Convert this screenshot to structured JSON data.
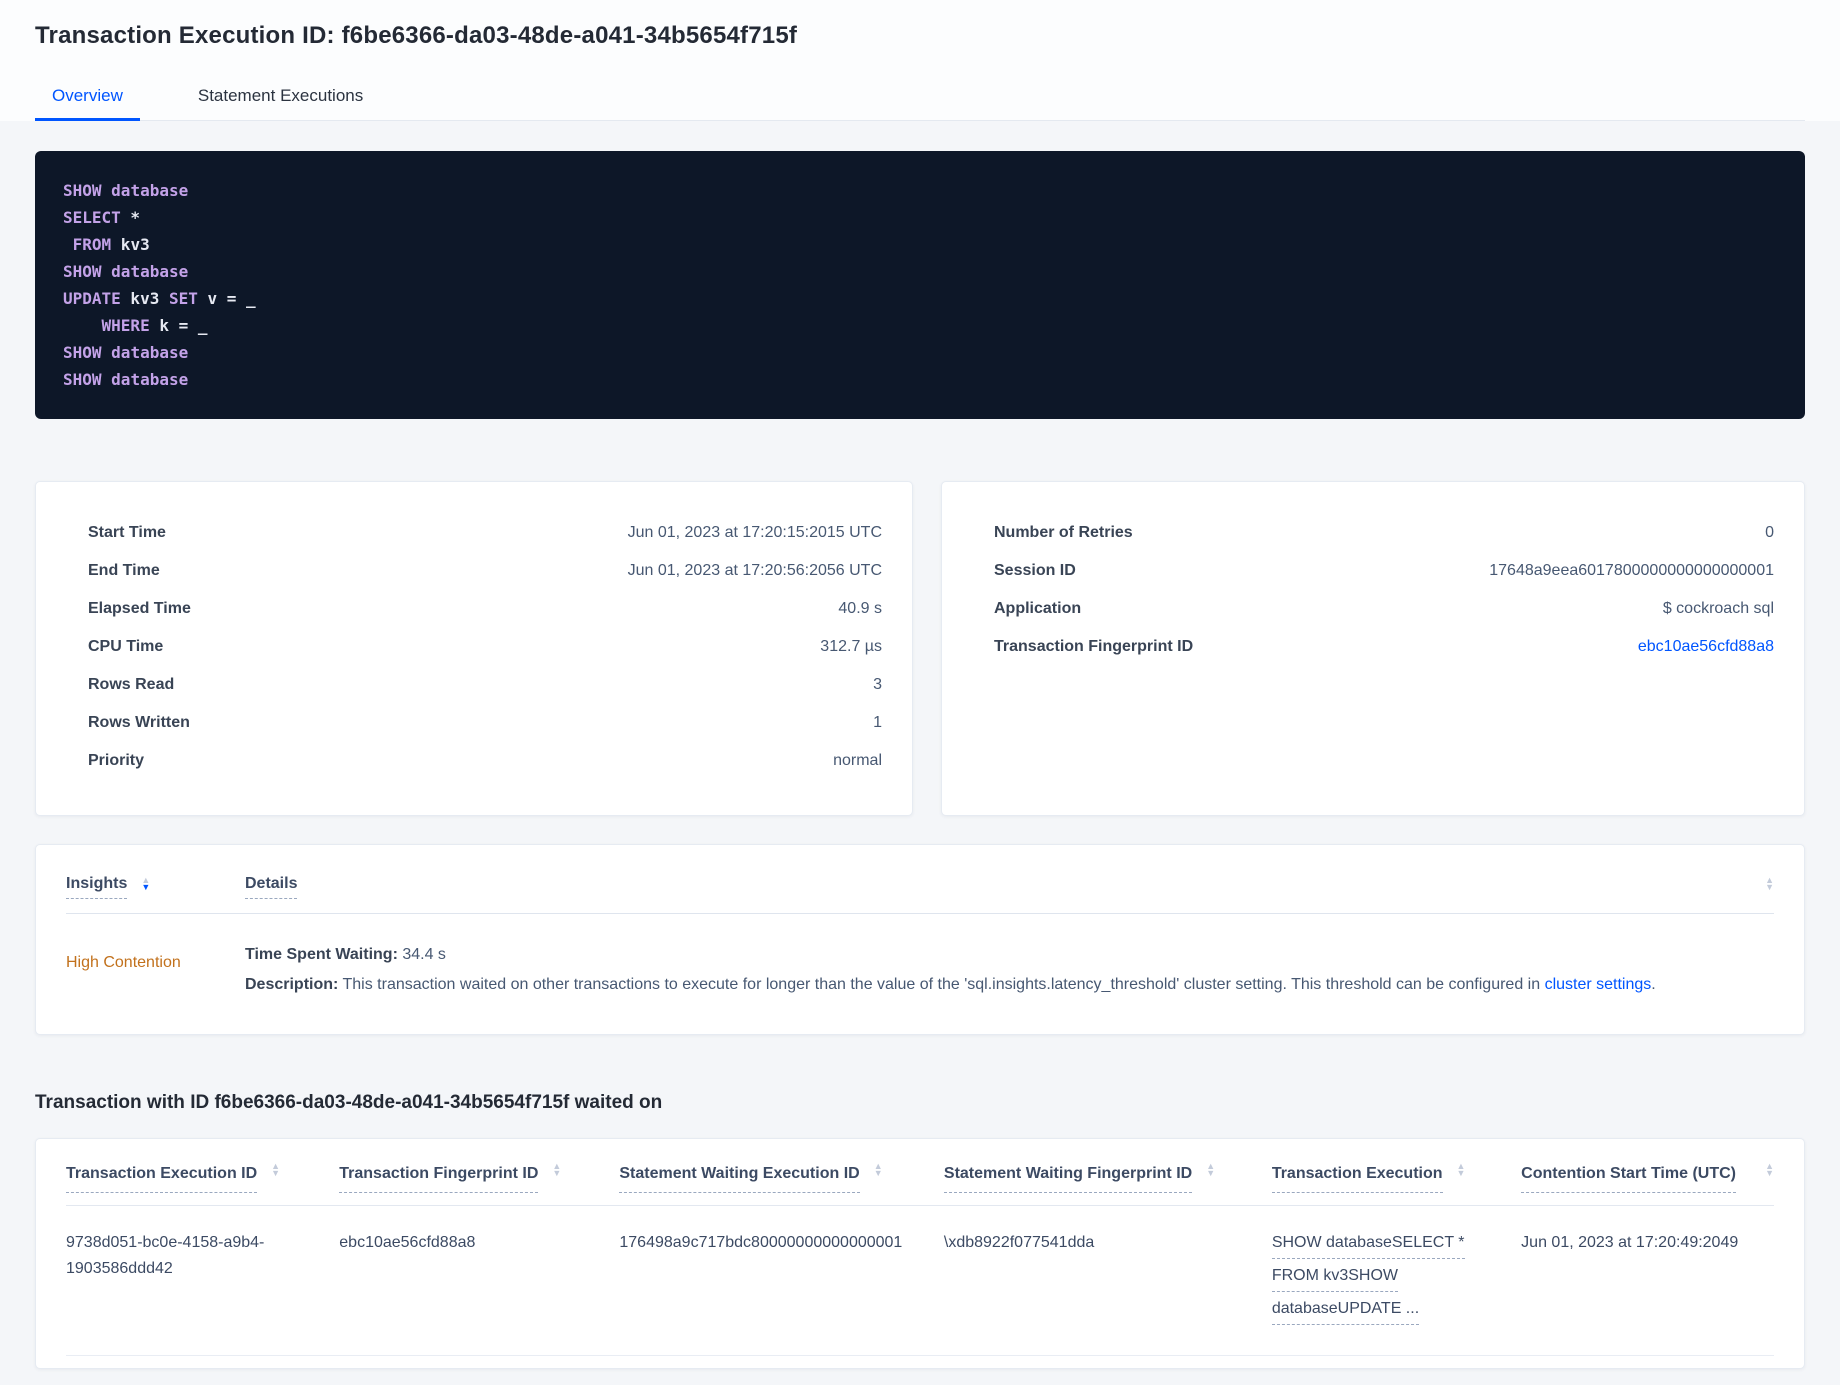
{
  "page": {
    "title": "Transaction Execution ID: f6be6366-da03-48de-a041-34b5654f715f",
    "tabs": [
      {
        "label": "Overview",
        "active": true
      },
      {
        "label": "Statement Executions",
        "active": false
      }
    ]
  },
  "colors": {
    "accent_blue": "#0055ff",
    "high_contention_orange": "#c2711c",
    "code_background": "#0d1728",
    "code_keyword": "#c3a2e8",
    "code_plain": "#e6e9f2"
  },
  "sql": {
    "lines": [
      [
        {
          "c": "kw",
          "t": "SHOW"
        },
        {
          "c": "pl",
          "t": " "
        },
        {
          "c": "kw",
          "t": "database"
        }
      ],
      [
        {
          "c": "kw",
          "t": "SELECT"
        },
        {
          "c": "pl",
          "t": " *"
        }
      ],
      [
        {
          "c": "pl",
          "t": " "
        },
        {
          "c": "kw",
          "t": "FROM"
        },
        {
          "c": "pl",
          "t": " kv3"
        }
      ],
      [
        {
          "c": "kw",
          "t": "SHOW"
        },
        {
          "c": "pl",
          "t": " "
        },
        {
          "c": "kw",
          "t": "database"
        }
      ],
      [
        {
          "c": "kw",
          "t": "UPDATE"
        },
        {
          "c": "pl",
          "t": " kv3 "
        },
        {
          "c": "kw",
          "t": "SET"
        },
        {
          "c": "pl",
          "t": " v = _"
        }
      ],
      [
        {
          "c": "pl",
          "t": "    "
        },
        {
          "c": "kw",
          "t": "WHERE"
        },
        {
          "c": "pl",
          "t": " k = _"
        }
      ],
      [
        {
          "c": "kw",
          "t": "SHOW"
        },
        {
          "c": "pl",
          "t": " "
        },
        {
          "c": "kw",
          "t": "database"
        }
      ],
      [
        {
          "c": "kw",
          "t": "SHOW"
        },
        {
          "c": "pl",
          "t": " "
        },
        {
          "c": "kw",
          "t": "database"
        }
      ]
    ]
  },
  "details_left": {
    "rows": [
      {
        "label": "Start Time",
        "value": "Jun 01, 2023 at 17:20:15:2015 UTC"
      },
      {
        "label": "End Time",
        "value": "Jun 01, 2023 at 17:20:56:2056 UTC"
      },
      {
        "label": "Elapsed Time",
        "value": "40.9 s"
      },
      {
        "label": "CPU Time",
        "value": "312.7 µs"
      },
      {
        "label": "Rows Read",
        "value": "3"
      },
      {
        "label": "Rows Written",
        "value": "1"
      },
      {
        "label": "Priority",
        "value": "normal"
      }
    ]
  },
  "details_right": {
    "rows": [
      {
        "label": "Number of Retries",
        "value": "0"
      },
      {
        "label": "Session ID",
        "value": "17648a9eea6017800000000000000001"
      },
      {
        "label": "Application",
        "value": "$ cockroach sql"
      },
      {
        "label": "Transaction Fingerprint ID",
        "value": "ebc10ae56cfd88a8"
      }
    ]
  },
  "insights": {
    "columns": [
      {
        "label": "Insights"
      },
      {
        "label": "Details"
      }
    ],
    "row": {
      "insight": "High Contention",
      "waiting_label": "Time Spent Waiting:",
      "waiting_value": " 34.4 s",
      "description_label": "Description:",
      "description_text": " This transaction waited on other transactions to execute for longer than the value of the 'sql.insights.latency_threshold' cluster setting. This threshold can be configured in ",
      "description_link": "cluster settings",
      "description_suffix": "."
    }
  },
  "waited_on": {
    "heading": "Transaction with ID f6be6366-da03-48de-a041-34b5654f715f waited on",
    "columns": [
      "Transaction Execution ID",
      "Transaction Fingerprint ID",
      "Statement Waiting Execution ID",
      "Statement Waiting Fingerprint ID",
      "Transaction Execution",
      "Contention Start Time (UTC)"
    ],
    "row": {
      "txn_execution_id": "9738d051-bc0e-4158-a9b4-1903586ddd42",
      "txn_fingerprint_id": "ebc10ae56cfd88a8",
      "stmt_waiting_execution_id": "176498a9c717bdc80000000000000001",
      "stmt_waiting_fingerprint_id": "\\xdb8922f077541dda",
      "txn_execution_lines": [
        "SHOW databaseSELECT *",
        "FROM kv3SHOW",
        "databaseUPDATE ..."
      ],
      "contention_start_time": "Jun 01, 2023 at 17:20:49:2049"
    }
  }
}
